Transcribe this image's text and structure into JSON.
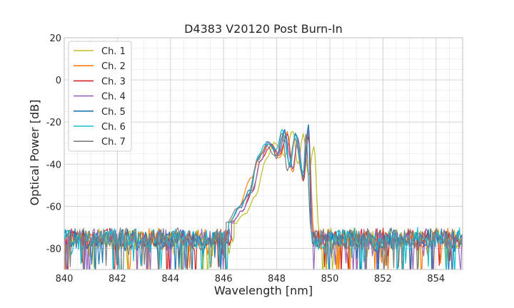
{
  "chart_data": {
    "type": "line",
    "title": "D4383 V20120 Post Burn-In",
    "xlabel": "Wavelength [nm]",
    "ylabel": "Optical Power [dB]",
    "xlim": [
      840,
      855
    ],
    "ylim": [
      -90,
      20
    ],
    "xticks": [
      840,
      842,
      844,
      846,
      848,
      850,
      852,
      854
    ],
    "yticks": [
      20,
      0,
      -20,
      -40,
      -60,
      -80
    ],
    "minor_grid": true,
    "legend_position": "top-left",
    "noise_floor": -72,
    "series": [
      {
        "name": "Ch. 1",
        "color": "#bcbd22",
        "x": [
          846.4,
          846.8,
          847.2,
          847.6,
          847.9,
          848.3,
          848.6,
          848.8,
          849.0,
          849.2,
          849.4,
          849.6
        ],
        "y": [
          -68,
          -64,
          -55,
          -38,
          -30,
          -36,
          -24,
          -40,
          -26,
          -45,
          -32,
          -72
        ]
      },
      {
        "name": "Ch. 2",
        "color": "#ff7f0e",
        "x": [
          846.2,
          846.6,
          847.0,
          847.4,
          847.7,
          848.1,
          848.4,
          848.6,
          848.8,
          849.0,
          849.2,
          849.4
        ],
        "y": [
          -68,
          -60,
          -47,
          -36,
          -30,
          -37,
          -25,
          -44,
          -28,
          -47,
          -26,
          -72
        ]
      },
      {
        "name": "Ch. 3",
        "color": "#d62728",
        "x": [
          846.3,
          846.7,
          847.1,
          847.4,
          847.8,
          848.1,
          848.4,
          848.6,
          848.8,
          849.0,
          849.2,
          849.35
        ],
        "y": [
          -68,
          -62,
          -52,
          -38,
          -31,
          -36,
          -26,
          -42,
          -28,
          -48,
          -27,
          -72
        ]
      },
      {
        "name": "Ch. 4",
        "color": "#9467bd",
        "x": [
          846.3,
          846.7,
          847.1,
          847.4,
          847.7,
          848.1,
          848.3,
          848.6,
          848.8,
          849.0,
          849.2,
          849.35
        ],
        "y": [
          -68,
          -62,
          -53,
          -38,
          -30,
          -35,
          -25,
          -42,
          -28,
          -46,
          -24,
          -72
        ]
      },
      {
        "name": "Ch. 5",
        "color": "#1f77b4",
        "x": [
          846.2,
          846.6,
          847.0,
          847.3,
          847.7,
          848.0,
          848.3,
          848.5,
          848.7,
          849.0,
          849.2,
          849.3
        ],
        "y": [
          -68,
          -61,
          -52,
          -37,
          -29,
          -36,
          -24,
          -42,
          -25,
          -46,
          -21,
          -72
        ]
      },
      {
        "name": "Ch. 6",
        "color": "#17becf",
        "x": [
          846.2,
          846.6,
          847.0,
          847.3,
          847.6,
          848.0,
          848.2,
          848.5,
          848.7,
          849.0,
          849.1,
          849.3
        ],
        "y": [
          -68,
          -60,
          -54,
          -36,
          -30,
          -33,
          -24,
          -40,
          -26,
          -44,
          -27,
          -72
        ]
      },
      {
        "name": "Ch. 7",
        "color": "#7f7f7f",
        "x": [
          846.1,
          846.5,
          846.9,
          847.3,
          847.6,
          848.0,
          848.2,
          848.4,
          848.7,
          849.0,
          849.1,
          849.3
        ],
        "y": [
          -68,
          -61,
          -55,
          -38,
          -31,
          -37,
          -25,
          -43,
          -28,
          -47,
          -26,
          -72
        ]
      }
    ]
  }
}
